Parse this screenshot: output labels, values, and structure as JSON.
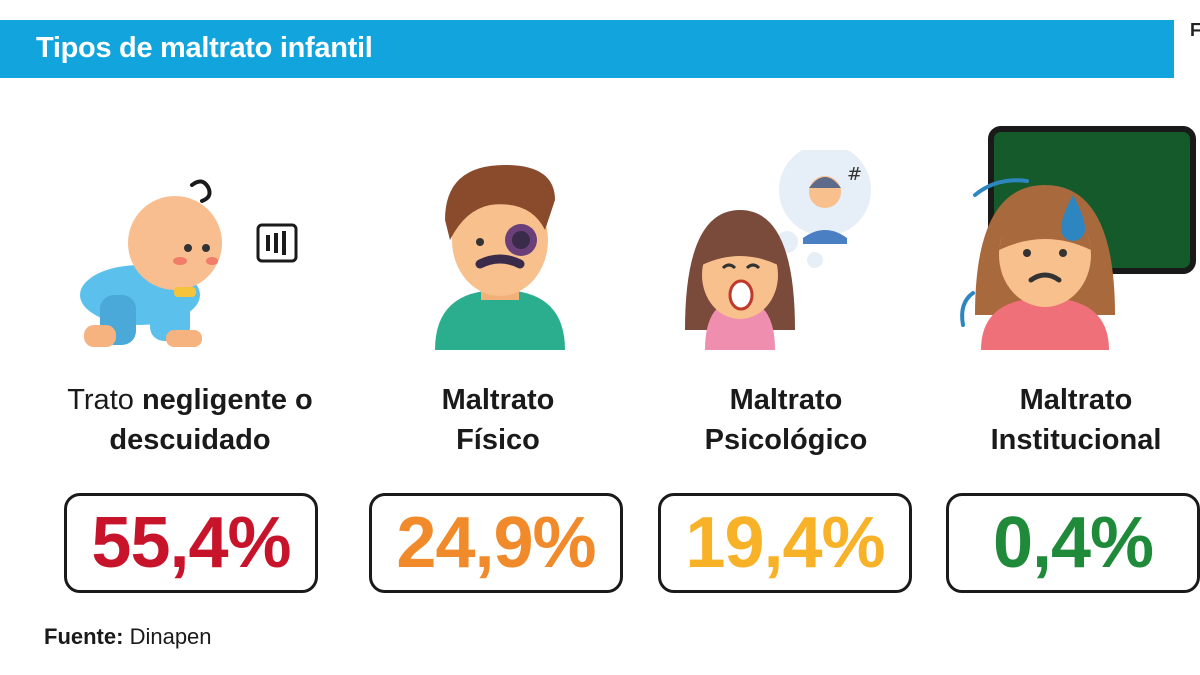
{
  "header": {
    "title": "Tipos de maltrato infantil",
    "edge_text": "F"
  },
  "chart_data": {
    "type": "table",
    "title": "Tipos de maltrato infantil",
    "unit": "%",
    "categories": [
      {
        "label_regular": "Trato ",
        "label_bold": "negligente o descuidado",
        "value": 55.4,
        "display": "55,4%",
        "color": "#c8142b",
        "icon": "crawling-baby-icon"
      },
      {
        "label_regular": "",
        "label_bold": "Maltrato Físico",
        "value": 24.9,
        "display": "24,9%",
        "color": "#f08a2b",
        "icon": "bruised-man-icon"
      },
      {
        "label_regular": "",
        "label_bold": "Maltrato Psicológico",
        "value": 19.4,
        "display": "19,4%",
        "color": "#f7b228",
        "icon": "crying-girl-icon"
      },
      {
        "label_regular": "",
        "label_bold": "Maltrato Institucional",
        "value": 0.4,
        "display": "0,4%",
        "color": "#1f8a3a",
        "icon": "worried-girl-icon"
      }
    ]
  },
  "footer": {
    "source_label": "Fuente:",
    "source_value": "Dinapen"
  }
}
